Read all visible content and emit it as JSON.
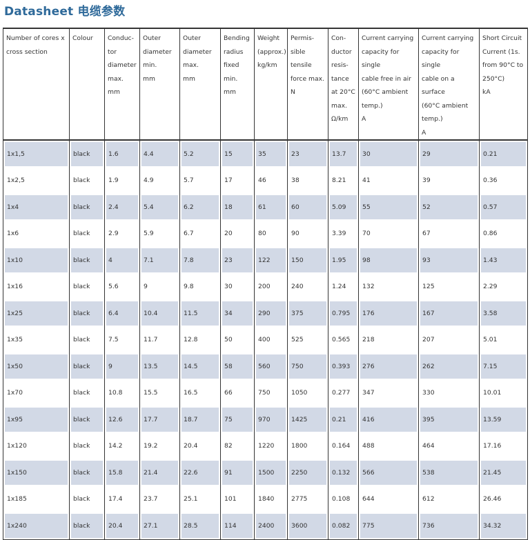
{
  "title": "Datasheet 电缆参数",
  "headers": [
    [
      "Number of cores x",
      "cross section"
    ],
    [
      "Colour"
    ],
    [
      "Conduc-",
      "tor",
      "diameter",
      "max.",
      "mm"
    ],
    [
      "Outer",
      "diameter",
      "min.",
      "mm"
    ],
    [
      "Outer",
      "diameter",
      "max.",
      "mm"
    ],
    [
      "Bending",
      "radius",
      "fixed",
      "min.",
      "mm"
    ],
    [
      "Weight",
      "(approx.)",
      "kg/km"
    ],
    [
      "Permis-",
      "sible",
      "tensile",
      "force max.",
      "N"
    ],
    [
      "Con-",
      "ductor",
      "resis-",
      "tance",
      "at 20°C",
      "max.",
      "Ω/km"
    ],
    [
      "Current carrying",
      "capacity for single",
      "cable free in air",
      "(60°C ambient",
      "temp.)",
      "A"
    ],
    [
      "Current carrying",
      "capacity for single",
      "cable on a surface",
      "(60°C ambient",
      "temp.)",
      "A"
    ],
    [
      "Short Circuit",
      "Current (1s.",
      "from 90°C to",
      "250°C)",
      "kA"
    ]
  ],
  "rows": [
    [
      "1x1,5",
      "black",
      "1.6",
      "4.4",
      "5.2",
      "15",
      "35",
      "23",
      "13.7",
      "30",
      "29",
      "0.21"
    ],
    [
      "1x2,5",
      "black",
      "1.9",
      "4.9",
      "5.7",
      "17",
      "46",
      "38",
      "8.21",
      "41",
      "39",
      "0.36"
    ],
    [
      "1x4",
      "black",
      "2.4",
      "5.4",
      "6.2",
      "18",
      "61",
      "60",
      "5.09",
      "55",
      "52",
      "0.57"
    ],
    [
      "1x6",
      "black",
      "2.9",
      "5.9",
      "6.7",
      "20",
      "80",
      "90",
      "3.39",
      "70",
      "67",
      "0.86"
    ],
    [
      "1x10",
      "black",
      "4",
      "7.1",
      "7.8",
      "23",
      "122",
      "150",
      "1.95",
      "98",
      "93",
      "1.43"
    ],
    [
      "1x16",
      "black",
      "5.6",
      "9",
      "9.8",
      "30",
      "200",
      "240",
      "1.24",
      "132",
      "125",
      "2.29"
    ],
    [
      "1x25",
      "black",
      "6.4",
      "10.4",
      "11.5",
      "34",
      "290",
      "375",
      "0.795",
      "176",
      "167",
      "3.58"
    ],
    [
      "1x35",
      "black",
      "7.5",
      "11.7",
      "12.8",
      "50",
      "400",
      "525",
      "0.565",
      "218",
      "207",
      "5.01"
    ],
    [
      "1x50",
      "black",
      "9",
      "13.5",
      "14.5",
      "58",
      "560",
      "750",
      "0.393",
      "276",
      "262",
      "7.15"
    ],
    [
      "1x70",
      "black",
      "10.8",
      "15.5",
      "16.5",
      "66",
      "750",
      "1050",
      "0.277",
      "347",
      "330",
      "10.01"
    ],
    [
      "1x95",
      "black",
      "12.6",
      "17.7",
      "18.7",
      "75",
      "970",
      "1425",
      "0.21",
      "416",
      "395",
      "13.59"
    ],
    [
      "1x120",
      "black",
      "14.2",
      "19.2",
      "20.4",
      "82",
      "1220",
      "1800",
      "0.164",
      "488",
      "464",
      "17.16"
    ],
    [
      "1x150",
      "black",
      "15.8",
      "21.4",
      "22.6",
      "91",
      "1500",
      "2250",
      "0.132",
      "566",
      "538",
      "21.45"
    ],
    [
      "1x185",
      "black",
      "17.4",
      "23.7",
      "25.1",
      "101",
      "1840",
      "2775",
      "0.108",
      "644",
      "612",
      "26.46"
    ],
    [
      "1x240",
      "black",
      "20.4",
      "27.1",
      "28.5",
      "114",
      "2400",
      "3600",
      "0.082",
      "775",
      "736",
      "34.32"
    ]
  ],
  "colors": {
    "title": "#2f6a9a",
    "row_shade": "#d2d9e6",
    "border": "#333333"
  }
}
